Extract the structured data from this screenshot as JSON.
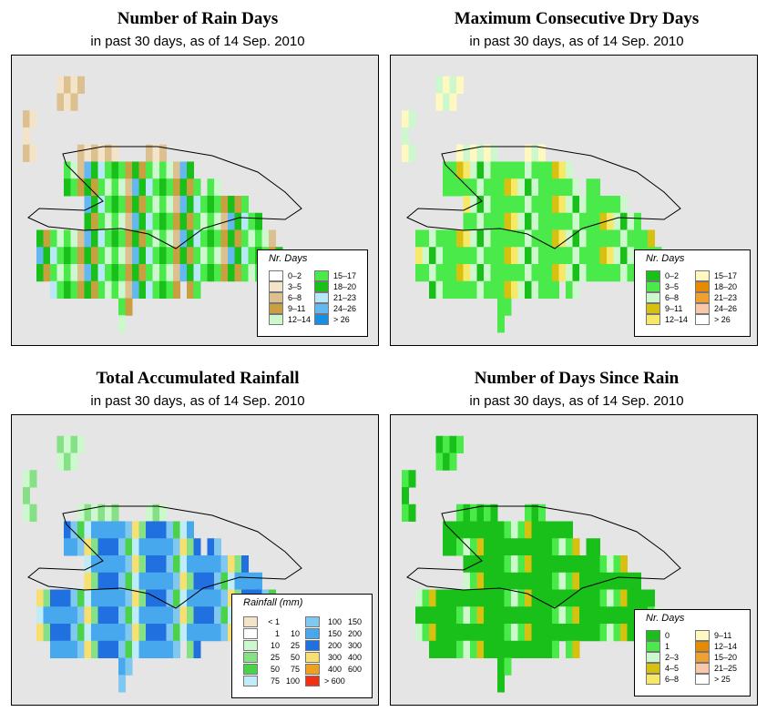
{
  "panels": [
    {
      "id": "rain-days",
      "title": "Number of Rain Days",
      "subtitle": "in past 30 days, as of  14 Sep. 2010",
      "legend": {
        "title": "Nr. Days",
        "items": [
          {
            "label": "0–2",
            "color": "#ffffff"
          },
          {
            "label": "3–5",
            "color": "#f3e3c8"
          },
          {
            "label": "6–8",
            "color": "#dcc090"
          },
          {
            "label": "9–11",
            "color": "#c8a040"
          },
          {
            "label": "12–14",
            "color": "#cdf7cd"
          },
          {
            "label": "15–17",
            "color": "#4bea4b"
          },
          {
            "label": "18–20",
            "color": "#19c019"
          },
          {
            "label": "21–23",
            "color": "#b8e8f8"
          },
          {
            "label": "24–26",
            "color": "#64b8f0"
          },
          {
            "label": "> 26",
            "color": "#1a8ee0"
          }
        ]
      }
    },
    {
      "id": "max-dry-days",
      "title": "Maximum Consecutive Dry Days",
      "subtitle": "in past 30 days, as of  14 Sep. 2010",
      "legend": {
        "title": "Nr. Days",
        "items": [
          {
            "label": "0–2",
            "color": "#19c019"
          },
          {
            "label": "3–5",
            "color": "#4bea4b"
          },
          {
            "label": "6–8",
            "color": "#cdf7cd"
          },
          {
            "label": "9–11",
            "color": "#d8c010"
          },
          {
            "label": "12–14",
            "color": "#f8e868"
          },
          {
            "label": "15–17",
            "color": "#fff8c0"
          },
          {
            "label": "18–20",
            "color": "#e88a00"
          },
          {
            "label": "21–23",
            "color": "#f0a030"
          },
          {
            "label": "24–26",
            "color": "#f8c8a8"
          },
          {
            "label": "> 26",
            "color": "#ffffff"
          }
        ]
      }
    },
    {
      "id": "total-rainfall",
      "title": "Total Accumulated Rainfall",
      "subtitle": "in past 30 days, as of  14 Sep. 2010",
      "legend": {
        "title": "Rainfall (mm)",
        "items": [
          {
            "lo": "< 1",
            "hi": "",
            "color": "#f3e3c8"
          },
          {
            "lo": "1",
            "hi": "10",
            "color": "#ffffff"
          },
          {
            "lo": "10",
            "hi": "25",
            "color": "#cdf7cd"
          },
          {
            "lo": "25",
            "hi": "50",
            "color": "#86e086"
          },
          {
            "lo": "50",
            "hi": "75",
            "color": "#4bd24b"
          },
          {
            "lo": "75",
            "hi": "100",
            "color": "#c0ecf8"
          },
          {
            "lo": "100",
            "hi": "150",
            "color": "#80c8f0"
          },
          {
            "lo": "150",
            "hi": "200",
            "color": "#48a8ee"
          },
          {
            "lo": "200",
            "hi": "300",
            "color": "#2070e0"
          },
          {
            "lo": "300",
            "hi": "400",
            "color": "#f8e070"
          },
          {
            "lo": "400",
            "hi": "600",
            "color": "#f0a020"
          },
          {
            "lo": "> 600",
            "hi": "",
            "color": "#f03010"
          }
        ]
      }
    },
    {
      "id": "days-since-rain",
      "title": "Number of Days Since Rain",
      "subtitle": "in past 30 days, as of  14 Sep. 2010",
      "legend": {
        "title": "Nr. Days",
        "items": [
          {
            "label": "0",
            "color": "#19c019"
          },
          {
            "label": "1",
            "color": "#4bea4b"
          },
          {
            "label": "2–3",
            "color": "#cdf7cd"
          },
          {
            "label": "4–5",
            "color": "#d8c010"
          },
          {
            "label": "6–8",
            "color": "#f8e868"
          },
          {
            "label": "9–11",
            "color": "#fff8c0"
          },
          {
            "label": "12–14",
            "color": "#e88a00"
          },
          {
            "label": "15–20",
            "color": "#f0a030"
          },
          {
            "label": "21–25",
            "color": "#f8c8a8"
          },
          {
            "label": "> 25",
            "color": "#ffffff"
          }
        ]
      }
    }
  ]
}
